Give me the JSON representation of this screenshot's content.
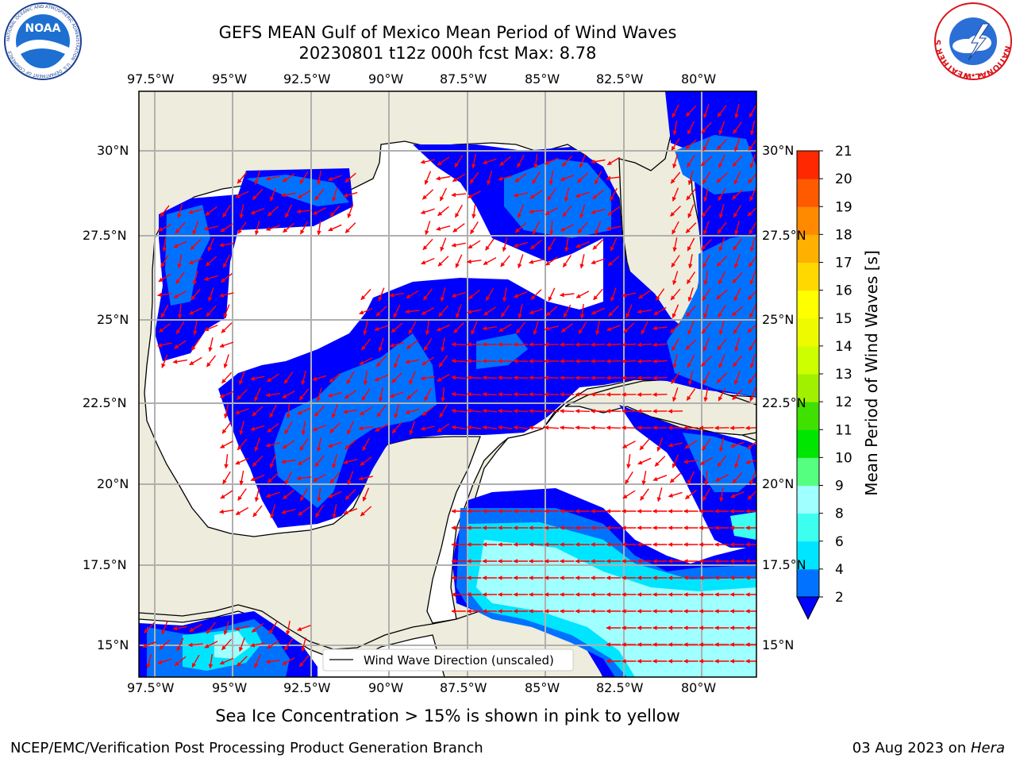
{
  "header": {
    "title_line1": "GEFS MEAN Gulf of Mexico Mean Period of Wind Waves",
    "title_line2": "20230801 t12z 000h fcst   Max: 8.78"
  },
  "logos": {
    "noaa": {
      "text": "NOAA",
      "ring_text": "NATIONAL OCEANIC AND ATMOSPHERIC ADMINISTRATION · U.S. DEPARTMENT OF COMMERCE"
    },
    "nws": {
      "ring_text": "NATIONAL WEATHER SERVICE"
    }
  },
  "map": {
    "lon_ticks": [
      "97.5°W",
      "95°W",
      "92.5°W",
      "90°W",
      "87.5°W",
      "85°W",
      "82.5°W",
      "80°W"
    ],
    "lat_ticks": [
      "30°N",
      "27.5°N",
      "25°N",
      "22.5°N",
      "20°N",
      "17.5°N",
      "15°N"
    ],
    "legend_label": "Wind Wave Direction (unscaled)",
    "colors": {
      "land": "#eeecdc",
      "water": "#ffffff",
      "arrow": "#ff0000",
      "grid": "#b0b0b0"
    }
  },
  "colorbar": {
    "title": "Mean Period of Wind Waves [s]",
    "ticks": [
      "2",
      "4",
      "6",
      "8",
      "9",
      "10",
      "11",
      "12",
      "13",
      "14",
      "15",
      "16",
      "17",
      "18",
      "19",
      "20",
      "21"
    ],
    "colors": [
      "#0000ff",
      "#0072ff",
      "#00e5ff",
      "#3cfff0",
      "#a0ffff",
      "#55ff80",
      "#00e600",
      "#40e000",
      "#a0f000",
      "#cdff00",
      "#eefb00",
      "#ffff00",
      "#ffd800",
      "#ffb000",
      "#ff8a00",
      "#ff5a00",
      "#ff2800",
      "#ff0000"
    ]
  },
  "notes": {
    "sea_ice": "Sea Ice Concentration > 15% is shown in pink to yellow"
  },
  "footer": {
    "left": "NCEP/EMC/Verification Post Processing Product Generation Branch",
    "date": "03 Aug 2023 on ",
    "machine": "Hera"
  }
}
